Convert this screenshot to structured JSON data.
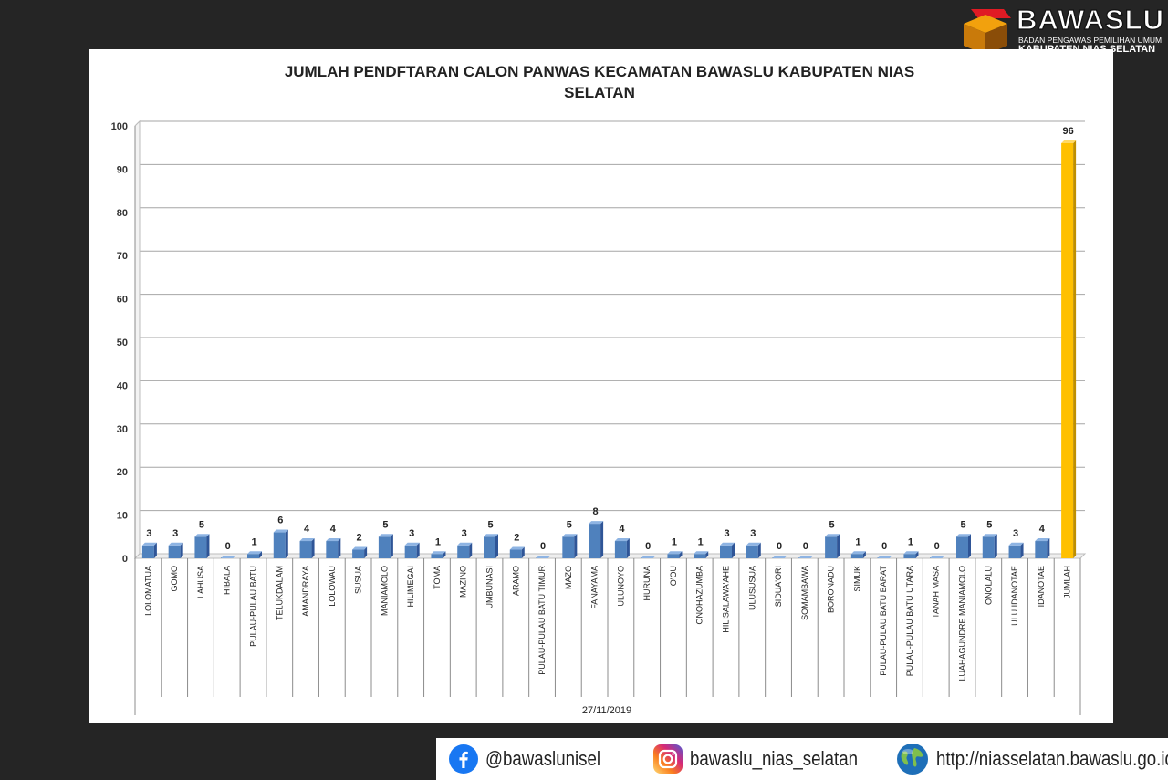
{
  "logo": {
    "brand": "BAWASLU",
    "line1": "BADAN PENGAWAS PEMILIHAN UMUM",
    "line2": "KABUPATEN NIAS SELATAN"
  },
  "footer": {
    "facebook": "@bawaslunisel",
    "instagram": "bawaslu_nias_selatan",
    "website": "http://niasselatan.bawaslu.go.id/"
  },
  "colors": {
    "bar": "#4f81bd",
    "total_bar": "#ffc000"
  },
  "chart_data": {
    "type": "bar",
    "title_line1": "JUMLAH PENDFTARAN CALON PANWAS KECAMATAN BAWASLU KABUPATEN NIAS",
    "title_line2": "SELATAN",
    "xlabel": "27/11/2019",
    "ylim": [
      0,
      100
    ],
    "yticks": [
      0,
      10,
      20,
      30,
      40,
      50,
      60,
      70,
      80,
      90,
      100
    ],
    "grid": true,
    "legend": "none",
    "categories": [
      "LOLOMATUA",
      "GOMO",
      "LAHUSA",
      "HIBALA",
      "PULAU-PULAU BATU",
      "TELUKDALAM",
      "AMANDRAYA",
      "LOLOWAU",
      "SUSUA",
      "MANIAMOLO",
      "HILIMEGAI",
      "TOMA",
      "MAZINO",
      "UMBUNASI",
      "ARAMO",
      "PULAU-PULAU BATU TIMUR",
      "MAZO",
      "FANAYAMA",
      "ULUNOYO",
      "HURUNA",
      "O'OU",
      "ONOHAZUMBA",
      "HILISALAWA'AHE",
      "ULUSUSUA",
      "SIDUA'ORI",
      "SOMAMBAWA",
      "BORONADU",
      "SIMUK",
      "PULAU-PULAU BATU BARAT",
      "PULAU-PULAU BATU UTARA",
      "TANAH MASA",
      "LUAHAGUNDRE MANIAMOLO",
      "ONOLALU",
      "ULU IDANOTAE",
      "IDANOTAE",
      "JUMLAH"
    ],
    "values": [
      3,
      3,
      5,
      0,
      1,
      6,
      4,
      4,
      2,
      5,
      3,
      1,
      3,
      5,
      2,
      0,
      5,
      8,
      4,
      0,
      1,
      1,
      3,
      3,
      0,
      0,
      5,
      1,
      0,
      1,
      0,
      5,
      5,
      3,
      4,
      96
    ]
  }
}
